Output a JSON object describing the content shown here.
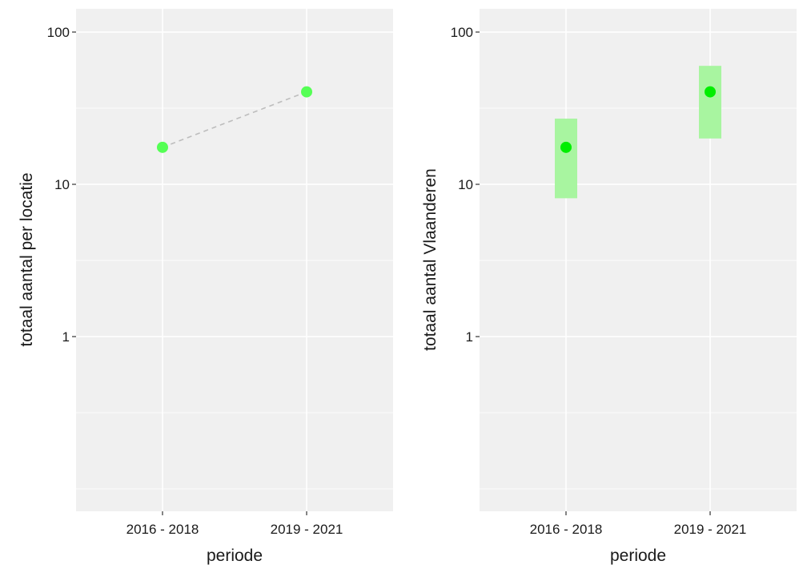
{
  "chart_data": [
    {
      "type": "line",
      "scale_y": "log10",
      "xlabel": "periode",
      "ylabel": "totaal aantal per locatie",
      "categories": [
        "2016 - 2018",
        "2019 - 2021"
      ],
      "yticks": [
        1,
        10,
        100
      ],
      "ytick_labels": [
        "1",
        "10",
        "100"
      ],
      "ylim": [
        0.1,
        140
      ],
      "grid": true,
      "series": [
        {
          "values": [
            17.5,
            40.5
          ],
          "color": "#55ff55",
          "line_style": "dashed",
          "line_color": "#bdbdbd"
        }
      ]
    },
    {
      "type": "scatter",
      "scale_y": "log10",
      "xlabel": "periode",
      "ylabel": "totaal aantal Vlaanderen",
      "categories": [
        "2016 - 2018",
        "2019 - 2021"
      ],
      "yticks": [
        1,
        10,
        100
      ],
      "ytick_labels": [
        "1",
        "10",
        "100"
      ],
      "ylim": [
        0.1,
        140
      ],
      "grid": true,
      "series": [
        {
          "values": [
            17.5,
            40.5
          ],
          "lower": [
            8.1,
            20.0
          ],
          "upper": [
            27.0,
            60.0
          ],
          "color": "#00ee00",
          "interval_color": "#a8f5a0"
        }
      ]
    }
  ]
}
